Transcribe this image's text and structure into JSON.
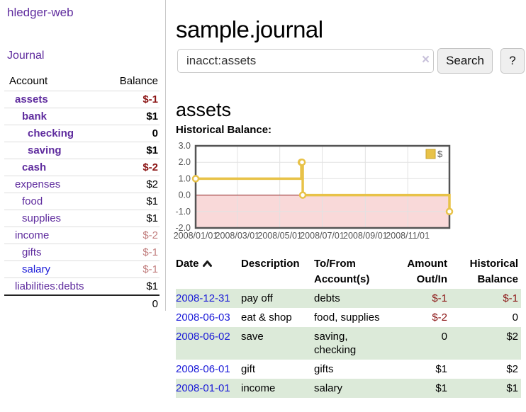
{
  "app": {
    "brand": "hledger-web"
  },
  "sidebar": {
    "journal_link": "Journal",
    "header": {
      "account": "Account",
      "balance": "Balance"
    },
    "accounts": [
      {
        "name": "assets",
        "balance": "$-1",
        "depth": 1
      },
      {
        "name": "bank",
        "balance": "$1",
        "depth": 2
      },
      {
        "name": "checking",
        "balance": "0",
        "depth": 3
      },
      {
        "name": "saving",
        "balance": "$1",
        "depth": 3
      },
      {
        "name": "cash",
        "balance": "$-2",
        "depth": 2
      },
      {
        "name": "expenses",
        "balance": "$2",
        "depth": 1
      },
      {
        "name": "food",
        "balance": "$1",
        "depth": 2
      },
      {
        "name": "supplies",
        "balance": "$1",
        "depth": 2
      },
      {
        "name": "income",
        "balance": "$-2",
        "depth": 1
      },
      {
        "name": "gifts",
        "balance": "$-1",
        "depth": 2
      },
      {
        "name": "salary",
        "balance": "$-1",
        "depth": 2
      },
      {
        "name": "liabilities:debts",
        "balance": "$1",
        "depth": 1
      }
    ],
    "total": "0"
  },
  "header": {
    "title": "sample.journal"
  },
  "search": {
    "value": "inacct:assets",
    "clear_icon": "×",
    "search_button": "Search",
    "help_button": "?"
  },
  "account_page": {
    "heading": "assets"
  },
  "chart_data": {
    "type": "line",
    "title": "Historical Balance:",
    "step": true,
    "series": [
      {
        "name": "$",
        "color": "#e8c248",
        "points": [
          {
            "date": "2008-01-01",
            "value": 1.0
          },
          {
            "date": "2008-06-01",
            "value": 2.0
          },
          {
            "date": "2008-06-02",
            "value": 2.0
          },
          {
            "date": "2008-06-03",
            "value": 0.0
          },
          {
            "date": "2008-12-31",
            "value": -1.0
          }
        ]
      }
    ],
    "xrange": [
      "2008-01-01",
      "2008-12-31"
    ],
    "ylim": [
      -2.0,
      3.0
    ],
    "yticks": [
      3.0,
      2.0,
      1.0,
      0.0,
      -1.0,
      -2.0
    ],
    "xticks": [
      "2008/01/01",
      "2008/03/01",
      "2008/05/01",
      "2008/07/01",
      "2008/09/01",
      "2008/11/01"
    ],
    "legend": {
      "position": "top-right",
      "entries": [
        "$"
      ]
    },
    "grid": true,
    "colors": {
      "grid": "#e2e2e2",
      "border": "#545454",
      "zero_line": "#8b1a1a",
      "negative_region": "#f9d9d9",
      "tick_text": "#545454",
      "legend_border": "#c7a32f"
    }
  },
  "register": {
    "columns": [
      "Date",
      "Description",
      "To/From Account(s)",
      "Amount Out/In",
      "Historical Balance"
    ],
    "rows": [
      {
        "date": "2008-12-31",
        "description": "pay off",
        "accounts": "debts",
        "amount": "$-1",
        "balance": "$-1"
      },
      {
        "date": "2008-06-03",
        "description": "eat & shop",
        "accounts": "food, supplies",
        "amount": "$-2",
        "balance": "0"
      },
      {
        "date": "2008-06-02",
        "description": "save",
        "accounts": "saving, checking",
        "amount": "0",
        "balance": "$2"
      },
      {
        "date": "2008-06-01",
        "description": "gift",
        "accounts": "gifts",
        "amount": "$1",
        "balance": "$2"
      },
      {
        "date": "2008-01-01",
        "description": "income",
        "accounts": "salary",
        "amount": "$1",
        "balance": "$1"
      }
    ]
  }
}
